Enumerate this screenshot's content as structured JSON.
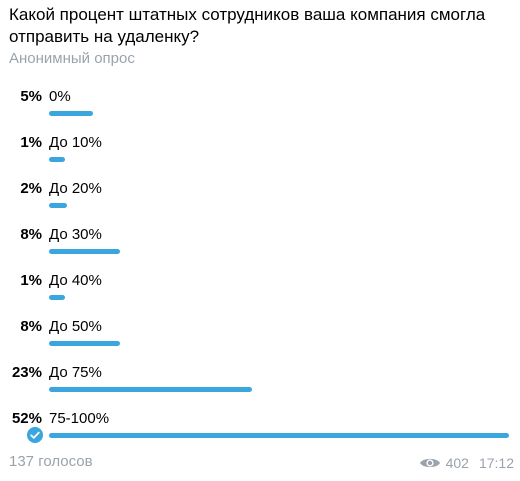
{
  "poll": {
    "question": "Какой процент штатных сотрудников ваша компания смогла отправить на удаленку?",
    "type_label": "Анонимный опрос",
    "accent_color": "#3aa6dd",
    "options": [
      {
        "percent_label": "5%",
        "label": "0%",
        "percent": 5,
        "chosen": false
      },
      {
        "percent_label": "1%",
        "label": "До 10%",
        "percent": 1,
        "chosen": false
      },
      {
        "percent_label": "2%",
        "label": "До 20%",
        "percent": 2,
        "chosen": false
      },
      {
        "percent_label": "8%",
        "label": "До 30%",
        "percent": 8,
        "chosen": false
      },
      {
        "percent_label": "1%",
        "label": "До 40%",
        "percent": 1,
        "chosen": false
      },
      {
        "percent_label": "8%",
        "label": "До 50%",
        "percent": 8,
        "chosen": false
      },
      {
        "percent_label": "23%",
        "label": "До 75%",
        "percent": 23,
        "chosen": false
      },
      {
        "percent_label": "52%",
        "label": "75-100%",
        "percent": 52,
        "chosen": true
      }
    ],
    "votes_label": "137 голосов",
    "views": "402",
    "time": "17:12",
    "icons": {
      "chosen": "check-circle-icon",
      "views": "eye-icon"
    }
  }
}
